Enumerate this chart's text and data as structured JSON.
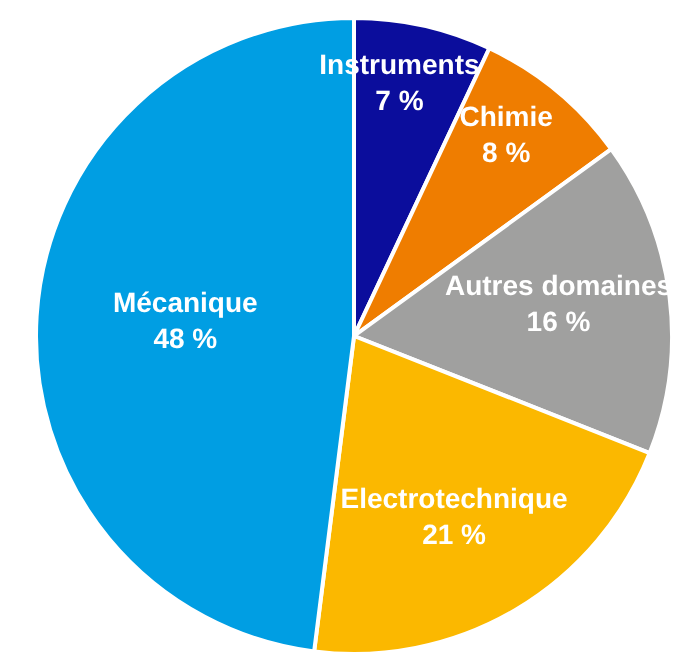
{
  "chart_data": {
    "type": "pie",
    "categories": [
      "Instruments",
      "Chimie",
      "Autres domaines",
      "Electrotechnique",
      "Mécanique"
    ],
    "values": [
      7,
      8,
      16,
      21,
      48
    ],
    "colors": [
      "#0b0d9c",
      "#ef7d00",
      "#a0a09f",
      "#fbb800",
      "#009ee3"
    ],
    "value_labels": [
      "7 %",
      "8 %",
      "16 %",
      "21 %",
      "48 %"
    ]
  }
}
